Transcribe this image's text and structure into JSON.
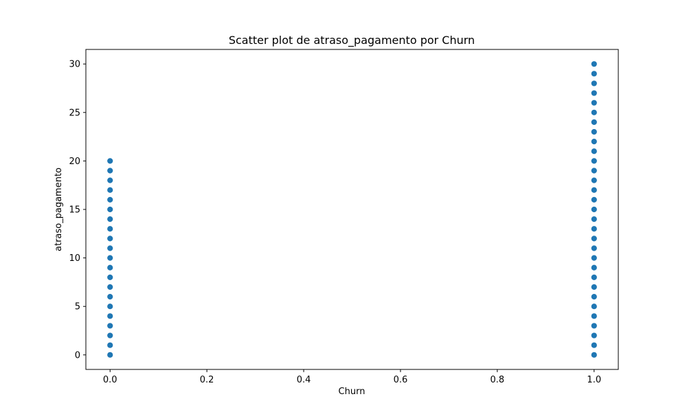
{
  "chart_data": {
    "type": "scatter",
    "title": "Scatter plot de atraso_pagamento por Churn",
    "xlabel": "Churn",
    "ylabel": "atraso_pagamento",
    "xlim": [
      -0.05,
      1.05
    ],
    "ylim": [
      -1.5,
      31.5
    ],
    "xticks": [
      0.0,
      0.2,
      0.4,
      0.6,
      0.8,
      1.0
    ],
    "xtick_labels": [
      "0.0",
      "0.2",
      "0.4",
      "0.6",
      "0.8",
      "1.0"
    ],
    "yticks": [
      0,
      5,
      10,
      15,
      20,
      25,
      30
    ],
    "ytick_labels": [
      "0",
      "5",
      "10",
      "15",
      "20",
      "25",
      "30"
    ],
    "grid": false,
    "legend": "none",
    "marker_color": "#1f77b4",
    "points": [
      {
        "x": 0,
        "y": 0
      },
      {
        "x": 0,
        "y": 1
      },
      {
        "x": 0,
        "y": 2
      },
      {
        "x": 0,
        "y": 3
      },
      {
        "x": 0,
        "y": 4
      },
      {
        "x": 0,
        "y": 5
      },
      {
        "x": 0,
        "y": 6
      },
      {
        "x": 0,
        "y": 7
      },
      {
        "x": 0,
        "y": 8
      },
      {
        "x": 0,
        "y": 9
      },
      {
        "x": 0,
        "y": 10
      },
      {
        "x": 0,
        "y": 11
      },
      {
        "x": 0,
        "y": 12
      },
      {
        "x": 0,
        "y": 13
      },
      {
        "x": 0,
        "y": 14
      },
      {
        "x": 0,
        "y": 15
      },
      {
        "x": 0,
        "y": 16
      },
      {
        "x": 0,
        "y": 17
      },
      {
        "x": 0,
        "y": 18
      },
      {
        "x": 0,
        "y": 19
      },
      {
        "x": 0,
        "y": 20
      },
      {
        "x": 1,
        "y": 0
      },
      {
        "x": 1,
        "y": 1
      },
      {
        "x": 1,
        "y": 2
      },
      {
        "x": 1,
        "y": 3
      },
      {
        "x": 1,
        "y": 4
      },
      {
        "x": 1,
        "y": 5
      },
      {
        "x": 1,
        "y": 6
      },
      {
        "x": 1,
        "y": 7
      },
      {
        "x": 1,
        "y": 8
      },
      {
        "x": 1,
        "y": 9
      },
      {
        "x": 1,
        "y": 10
      },
      {
        "x": 1,
        "y": 11
      },
      {
        "x": 1,
        "y": 12
      },
      {
        "x": 1,
        "y": 13
      },
      {
        "x": 1,
        "y": 14
      },
      {
        "x": 1,
        "y": 15
      },
      {
        "x": 1,
        "y": 16
      },
      {
        "x": 1,
        "y": 17
      },
      {
        "x": 1,
        "y": 18
      },
      {
        "x": 1,
        "y": 19
      },
      {
        "x": 1,
        "y": 20
      },
      {
        "x": 1,
        "y": 21
      },
      {
        "x": 1,
        "y": 22
      },
      {
        "x": 1,
        "y": 23
      },
      {
        "x": 1,
        "y": 24
      },
      {
        "x": 1,
        "y": 25
      },
      {
        "x": 1,
        "y": 26
      },
      {
        "x": 1,
        "y": 27
      },
      {
        "x": 1,
        "y": 28
      },
      {
        "x": 1,
        "y": 29
      },
      {
        "x": 1,
        "y": 30
      }
    ]
  }
}
